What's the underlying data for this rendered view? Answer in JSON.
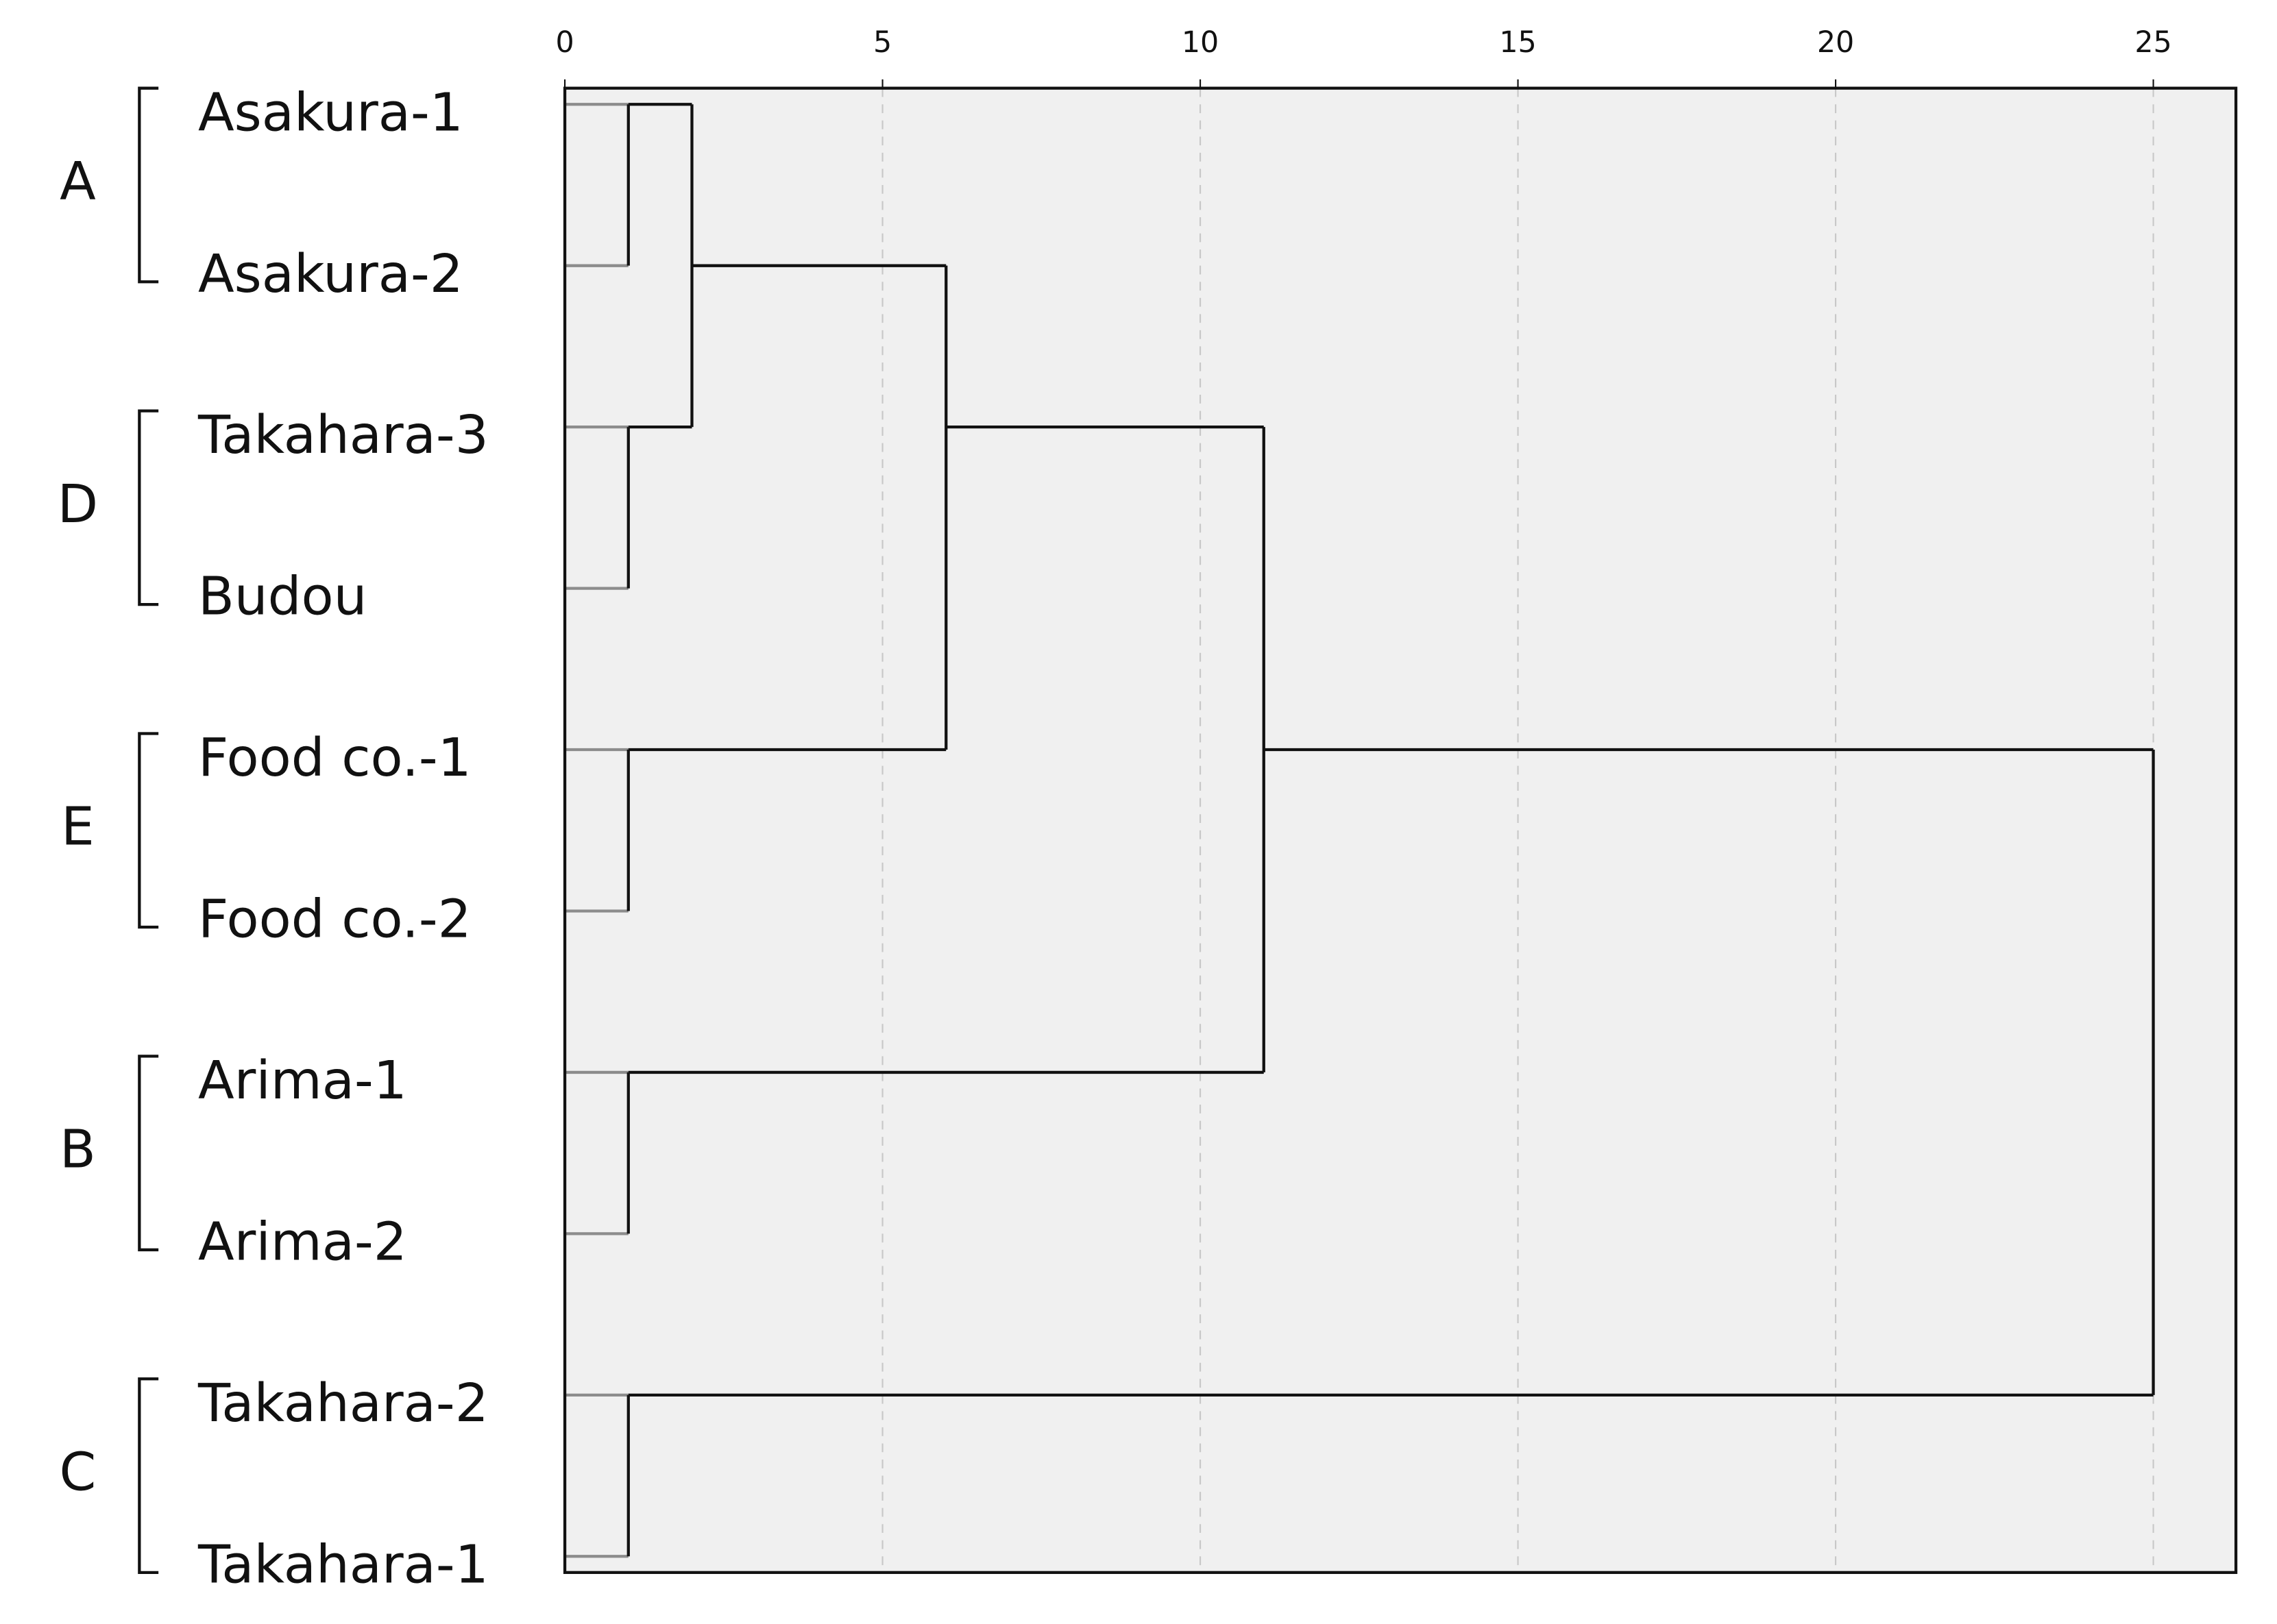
{
  "chart_data": {
    "type": "dendrogram",
    "leaves": [
      "Asakura-1",
      "Asakura-2",
      "Takahara-3",
      "Budou",
      "Food co.-1",
      "Food co.-2",
      "Arima-1",
      "Arima-2",
      "Takahara-2",
      "Takahara-1"
    ],
    "group_labels": [
      "A",
      "D",
      "E",
      "B",
      "C"
    ],
    "merges": [
      {
        "left": 0,
        "right": 1,
        "height": 1
      },
      {
        "left": 2,
        "right": 3,
        "height": 1
      },
      {
        "left": 4,
        "right": 5,
        "height": 1
      },
      {
        "left": 6,
        "right": 7,
        "height": 1
      },
      {
        "left": 8,
        "right": 9,
        "height": 1
      },
      {
        "left": 10,
        "right": 11,
        "height": 2
      },
      {
        "left": 15,
        "right": 12,
        "height": 6
      },
      {
        "left": 16,
        "right": 13,
        "height": 11
      },
      {
        "left": 17,
        "right": 14,
        "height": 25
      }
    ],
    "xlim": [
      0,
      26.3
    ],
    "xticks": [
      0,
      5,
      10,
      15,
      20,
      25
    ],
    "grid": true,
    "leaf_line_color": "#8c8c8c",
    "link_color": "#111111",
    "background": "#f0f0f0"
  }
}
